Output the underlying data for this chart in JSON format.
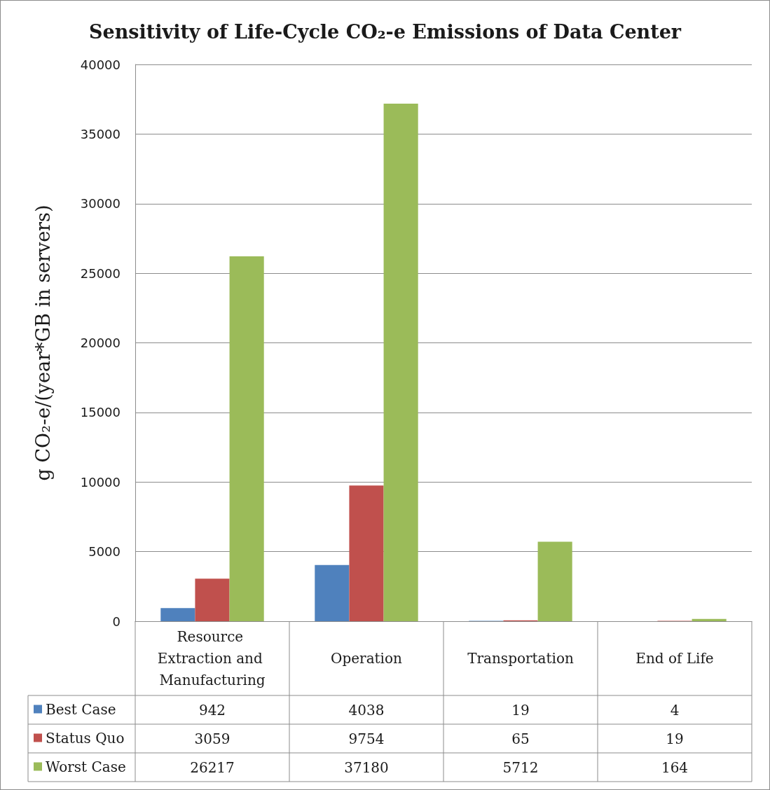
{
  "chart_data": {
    "type": "bar",
    "title": "Sensitivity of Life-Cycle CO₂-e Emissions of Data Center",
    "ylabel": "g CO₂-e/(year*GB in servers)",
    "categories": [
      "Resource Extraction and Manufacturing",
      "Operation",
      "Transportation",
      "End of Life"
    ],
    "series": [
      {
        "name": "Best Case",
        "color": "#4f81bd",
        "values": [
          942,
          4038,
          19,
          4
        ]
      },
      {
        "name": "Status Quo",
        "color": "#c0504d",
        "values": [
          3059,
          9754,
          65,
          19
        ]
      },
      {
        "name": "Worst Case",
        "color": "#9bbb59",
        "values": [
          26217,
          37180,
          5712,
          164
        ]
      }
    ],
    "ylim": [
      0,
      40000
    ],
    "yticks": [
      0,
      5000,
      10000,
      15000,
      20000,
      25000,
      30000,
      35000,
      40000
    ],
    "grid": "y",
    "legend": "bottom left",
    "data_labels": true
  }
}
